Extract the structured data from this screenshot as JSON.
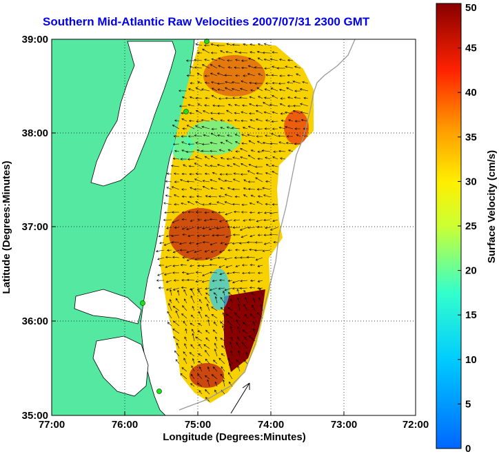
{
  "title": "Southern Mid-Atlantic Raw Velocities 2007/07/31 2300 GMT",
  "xlabel": "Longitude (Degrees:Minutes)",
  "ylabel": "Latitude (Degrees:Minutes)",
  "colorbar": {
    "label": "Surface Velocity (cm/s)",
    "min": 0,
    "max": 50,
    "ticks": [
      "0",
      "5",
      "10",
      "15",
      "20",
      "25",
      "30",
      "35",
      "40",
      "45",
      "50"
    ],
    "colormap": "jet"
  },
  "axes": {
    "x_ticks": [
      "77:00",
      "76:00",
      "75:00",
      "74:00",
      "73:00",
      "72:00"
    ],
    "y_ticks": [
      "39:00",
      "38:00",
      "37:00",
      "36:00",
      "35:00"
    ],
    "xlim": [
      -77,
      -72
    ],
    "ylim": [
      35,
      39
    ],
    "grid": "dotted"
  },
  "colors": {
    "land": "#55e8a0",
    "station": "#22dd22",
    "title": "#0000ee"
  }
}
